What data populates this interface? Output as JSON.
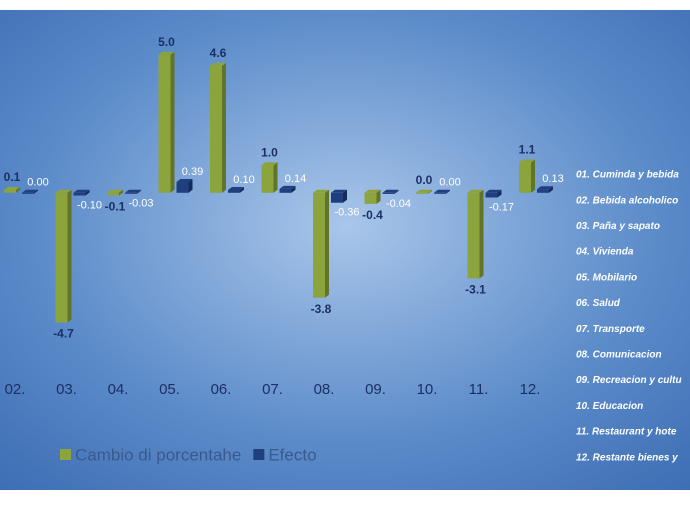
{
  "chart_data": {
    "type": "bar",
    "categories": [
      "02.",
      "03.",
      "04.",
      "05.",
      "06.",
      "07.",
      "08.",
      "09.",
      "10.",
      "11.",
      "12."
    ],
    "series": [
      {
        "name": "Cambio di porcentahe",
        "color": "#8ca43c",
        "values": [
          0.1,
          -4.7,
          -0.1,
          5.0,
          4.6,
          1.0,
          -3.8,
          -0.4,
          0.0,
          -3.1,
          1.1
        ],
        "value_labels": [
          "0.1",
          "-4.7",
          "-0.1",
          "5.0",
          "4.6",
          "1.0",
          "-3.8",
          "-0.4",
          "0.0",
          "-3.1",
          "1.1"
        ]
      },
      {
        "name": "Efecto",
        "color": "#1f3f7e",
        "values": [
          0.0,
          -0.1,
          -0.03,
          0.39,
          0.1,
          0.14,
          -0.36,
          -0.04,
          0.0,
          -0.17,
          0.13
        ],
        "value_labels": [
          "0.00",
          "-0.10",
          "-0.03",
          "0.39",
          "0.10",
          "0.14",
          "-0.36",
          "-0.04",
          "0.00",
          "-0.17",
          "0.13"
        ]
      }
    ],
    "ylim": [
      -6,
      5.5
    ],
    "notes": [
      "01. Cuminda y bebida",
      "02. Bebida alcoholico",
      "03. Paña y sapato",
      "04. Vivienda",
      "05. Mobilario",
      "06. Salud",
      "07. Transporte",
      "08. Comunicacion",
      "09. Recreacion y cultu",
      "10. Educacion",
      "11. Restaurant y hote",
      "12. Restante bienes y"
    ]
  }
}
